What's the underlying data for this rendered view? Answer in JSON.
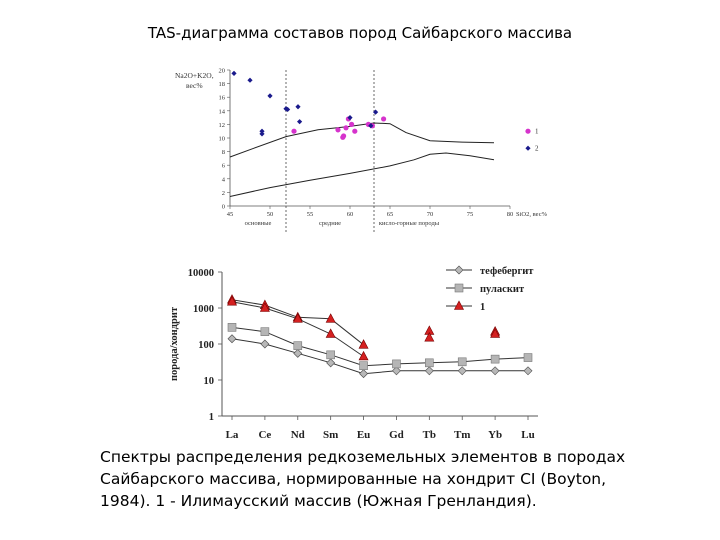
{
  "title": "TAS-диаграмма составов пород Сайбарского массива",
  "caption": "Спектры распределения редкоземельных элементов в породах Сайбарского массива, нормированные на хондрит CI (Boyton, 1984). 1 - Илимаусский массив (Южная Гренландия).",
  "chart_data": [
    {
      "type": "scatter",
      "ylabel_line1": "Na2O+K2O,",
      "ylabel_line2": "вес%",
      "xlabel": "SiO2, вес%",
      "xlim": [
        45,
        80
      ],
      "ylim": [
        0,
        20
      ],
      "xticks": [
        45,
        50,
        55,
        60,
        65,
        70,
        75,
        80
      ],
      "yticks": [
        0,
        2,
        4,
        6,
        8,
        10,
        12,
        14,
        16,
        18,
        20
      ],
      "dividers": [
        52,
        63
      ],
      "zone_labels": [
        "основные",
        "средние",
        "кисло-горные породы"
      ],
      "legend": [
        "1",
        "2"
      ],
      "colors": {
        "s1": "#d633cc",
        "s2": "#1a1a8c"
      },
      "upper_curve": [
        [
          45,
          7.2
        ],
        [
          48,
          8.5
        ],
        [
          52,
          10.2
        ],
        [
          56,
          11.2
        ],
        [
          60,
          11.7
        ],
        [
          63,
          12.2
        ],
        [
          65,
          12.1
        ],
        [
          67,
          10.8
        ],
        [
          70,
          9.6
        ],
        [
          74,
          9.4
        ],
        [
          78,
          9.3
        ]
      ],
      "lower_curve": [
        [
          45,
          1.4
        ],
        [
          50,
          2.7
        ],
        [
          55,
          3.8
        ],
        [
          60,
          4.8
        ],
        [
          65,
          5.9
        ],
        [
          68,
          6.8
        ],
        [
          70,
          7.6
        ],
        [
          72,
          7.8
        ],
        [
          75,
          7.4
        ],
        [
          78,
          6.8
        ]
      ],
      "series": [
        {
          "name": "1",
          "marker": "circle",
          "points": [
            [
              53,
              11
            ],
            [
              58.5,
              11.2
            ],
            [
              59.2,
              10.3
            ],
            [
              59.5,
              11.5
            ],
            [
              59.8,
              12.8
            ],
            [
              60.2,
              12
            ],
            [
              60.6,
              11
            ],
            [
              62.3,
              12
            ],
            [
              62.8,
              11.8
            ],
            [
              64.2,
              12.8
            ],
            [
              59.1,
              10.1
            ]
          ]
        },
        {
          "name": "2",
          "marker": "diamond",
          "points": [
            [
              45.5,
              19.5
            ],
            [
              47.5,
              18.5
            ],
            [
              49,
              10.6
            ],
            [
              49,
              11
            ],
            [
              50,
              16.2
            ],
            [
              52,
              14.3
            ],
            [
              52.2,
              14.2
            ],
            [
              53.5,
              14.6
            ],
            [
              53.7,
              12.4
            ],
            [
              60,
              13
            ],
            [
              63.2,
              13.8
            ],
            [
              62.6,
              11.8
            ]
          ]
        }
      ]
    },
    {
      "type": "line",
      "scale": "log",
      "ylabel": "порода/хондрит",
      "ylim": [
        1,
        10000
      ],
      "yticks": [
        1,
        10,
        100,
        1000,
        10000
      ],
      "categories": [
        "La",
        "Ce",
        "Nd",
        "Sm",
        "Eu",
        "Gd",
        "Tb",
        "Tm",
        "Yb",
        "Lu"
      ],
      "series": [
        {
          "name": "тефебергит",
          "marker": "diamond",
          "values": [
            140,
            100,
            55,
            30,
            15,
            18,
            18,
            18,
            18,
            18
          ]
        },
        {
          "name": "пуласкит",
          "marker": "square",
          "values": [
            290,
            220,
            90,
            50,
            25,
            28,
            30,
            32,
            38,
            42
          ]
        },
        {
          "name": "1",
          "marker": "triangle",
          "values": [
            1700,
            1200,
            550,
            500,
            95,
            null,
            230,
            null,
            220,
            null
          ],
          "low_values": [
            1500,
            1000,
            500,
            190,
            45,
            null,
            150,
            null,
            190,
            null
          ]
        }
      ]
    }
  ]
}
